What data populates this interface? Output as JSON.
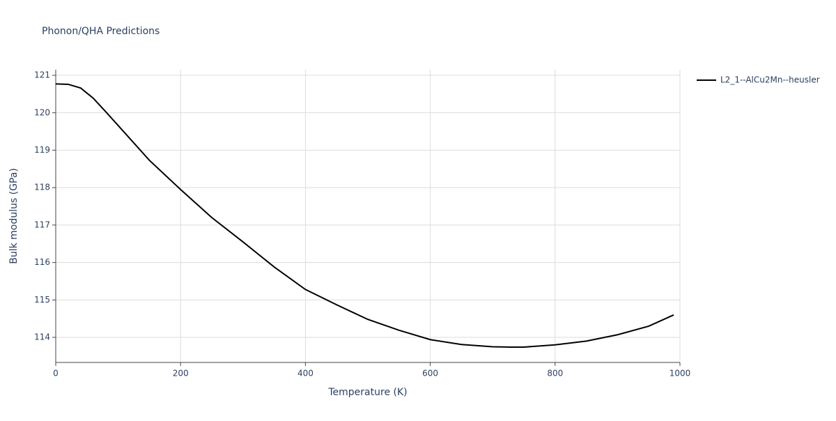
{
  "chart_data": {
    "type": "line",
    "title": "Phonon/QHA Predictions",
    "x_label": "Temperature (K)",
    "y_label": "Bulk modulus (GPa)",
    "x": [
      0,
      20,
      40,
      60,
      80,
      100,
      150,
      200,
      250,
      300,
      350,
      400,
      450,
      500,
      550,
      600,
      650,
      700,
      730,
      750,
      800,
      850,
      900,
      950,
      990
    ],
    "series": [
      {
        "name": "L2_1--AlCu2Mn--heusler",
        "color": "#000000",
        "values": [
          120.77,
          120.76,
          120.66,
          120.39,
          120.03,
          119.66,
          118.73,
          117.95,
          117.2,
          116.55,
          115.88,
          115.28,
          114.87,
          114.48,
          114.19,
          113.94,
          113.81,
          113.75,
          113.74,
          113.74,
          113.8,
          113.9,
          114.07,
          114.3,
          114.6
        ]
      }
    ],
    "xlim": [
      0,
      1000
    ],
    "xticks": [
      0,
      200,
      400,
      600,
      800,
      1000
    ],
    "ylim": [
      113.33,
      121.15
    ],
    "yticks": [
      114,
      115,
      116,
      117,
      118,
      119,
      120,
      121
    ],
    "grid": true,
    "legend": "right"
  }
}
